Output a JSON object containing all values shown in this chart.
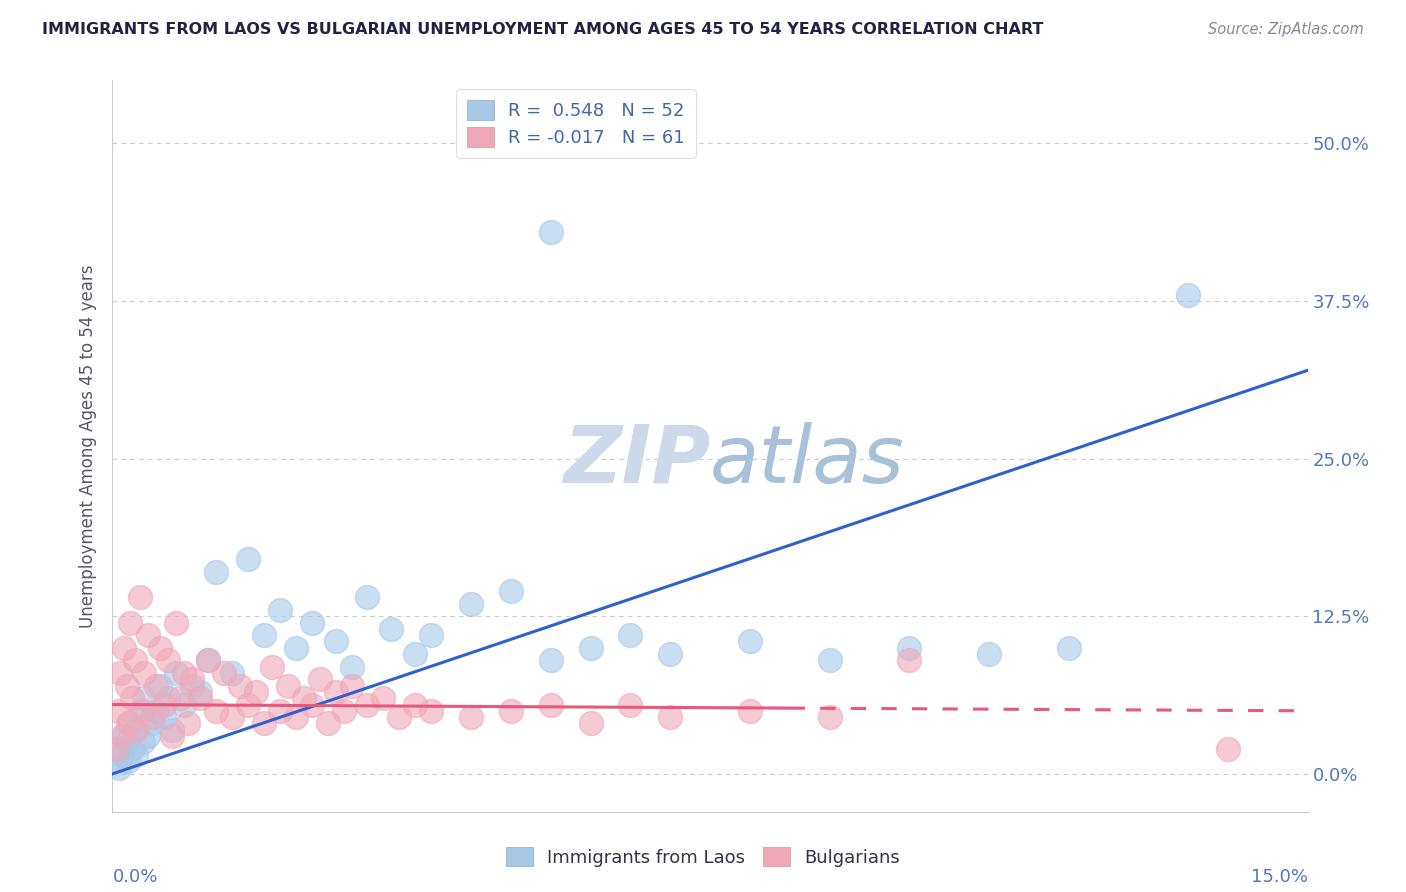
{
  "title": "IMMIGRANTS FROM LAOS VS BULGARIAN UNEMPLOYMENT AMONG AGES 45 TO 54 YEARS CORRELATION CHART",
  "source_text": "Source: ZipAtlas.com",
  "ylabel": "Unemployment Among Ages 45 to 54 years",
  "ytick_values": [
    0.0,
    12.5,
    25.0,
    37.5,
    50.0
  ],
  "ytick_labels": [
    "",
    "12.5%",
    "25.0%",
    "37.5%",
    "50.0%"
  ],
  "xlim": [
    0.0,
    15.0
  ],
  "ylim": [
    -3.0,
    55.0
  ],
  "blue_color": "#A8C8E8",
  "pink_color": "#F0A8B8",
  "blue_line_color": "#3060CC",
  "pink_line_color": "#E85878",
  "watermark_color": "#DDE8F2",
  "title_color": "#222244",
  "source_color": "#888899",
  "background_color": "#ffffff",
  "grid_color": "#CCCCCC",
  "blue_scatter_x": [
    0.05,
    0.08,
    0.1,
    0.12,
    0.15,
    0.18,
    0.2,
    0.22,
    0.25,
    0.28,
    0.3,
    0.35,
    0.38,
    0.4,
    0.45,
    0.5,
    0.55,
    0.6,
    0.65,
    0.7,
    0.75,
    0.8,
    0.9,
    1.0,
    1.1,
    1.2,
    1.3,
    1.5,
    1.7,
    1.9,
    2.1,
    2.3,
    2.5,
    2.8,
    3.0,
    3.2,
    3.5,
    3.8,
    4.0,
    4.5,
    5.0,
    5.5,
    6.0,
    6.5,
    7.0,
    8.0,
    9.0,
    10.0,
    11.0,
    12.0,
    5.5,
    13.5
  ],
  "blue_scatter_y": [
    1.0,
    0.5,
    2.0,
    1.5,
    3.0,
    2.5,
    1.0,
    4.0,
    2.0,
    3.5,
    1.5,
    5.0,
    2.5,
    6.0,
    3.0,
    4.0,
    5.0,
    7.0,
    4.5,
    6.0,
    3.5,
    8.0,
    5.5,
    7.0,
    6.5,
    9.0,
    16.0,
    8.0,
    17.0,
    11.0,
    13.0,
    10.0,
    12.0,
    10.5,
    8.5,
    14.0,
    11.5,
    9.5,
    11.0,
    13.5,
    14.5,
    9.0,
    10.0,
    11.0,
    9.5,
    10.5,
    9.0,
    10.0,
    9.5,
    10.0,
    43.0,
    38.0
  ],
  "pink_scatter_x": [
    0.05,
    0.07,
    0.1,
    0.12,
    0.15,
    0.18,
    0.2,
    0.22,
    0.25,
    0.28,
    0.3,
    0.35,
    0.38,
    0.4,
    0.45,
    0.5,
    0.55,
    0.6,
    0.65,
    0.7,
    0.75,
    0.8,
    0.85,
    0.9,
    0.95,
    1.0,
    1.1,
    1.2,
    1.3,
    1.4,
    1.5,
    1.6,
    1.7,
    1.8,
    1.9,
    2.0,
    2.1,
    2.2,
    2.3,
    2.4,
    2.5,
    2.6,
    2.7,
    2.8,
    2.9,
    3.0,
    3.2,
    3.4,
    3.6,
    3.8,
    4.0,
    4.5,
    5.0,
    5.5,
    6.0,
    6.5,
    7.0,
    8.0,
    9.0,
    10.0,
    14.0
  ],
  "pink_scatter_y": [
    2.0,
    5.0,
    8.0,
    3.0,
    10.0,
    7.0,
    4.0,
    12.0,
    6.0,
    9.0,
    3.5,
    14.0,
    5.0,
    8.0,
    11.0,
    4.5,
    7.0,
    10.0,
    5.5,
    9.0,
    3.0,
    12.0,
    6.0,
    8.0,
    4.0,
    7.5,
    6.0,
    9.0,
    5.0,
    8.0,
    4.5,
    7.0,
    5.5,
    6.5,
    4.0,
    8.5,
    5.0,
    7.0,
    4.5,
    6.0,
    5.5,
    7.5,
    4.0,
    6.5,
    5.0,
    7.0,
    5.5,
    6.0,
    4.5,
    5.5,
    5.0,
    4.5,
    5.0,
    5.5,
    4.0,
    5.5,
    4.5,
    5.0,
    4.5,
    9.0,
    2.0
  ],
  "blue_trendline_x": [
    0.0,
    15.0
  ],
  "blue_trendline_y": [
    0.0,
    32.0
  ],
  "pink_trendline_x": [
    0.0,
    15.0
  ],
  "pink_trendline_y": [
    5.5,
    5.0
  ],
  "pink_solid_end_x": 8.5
}
